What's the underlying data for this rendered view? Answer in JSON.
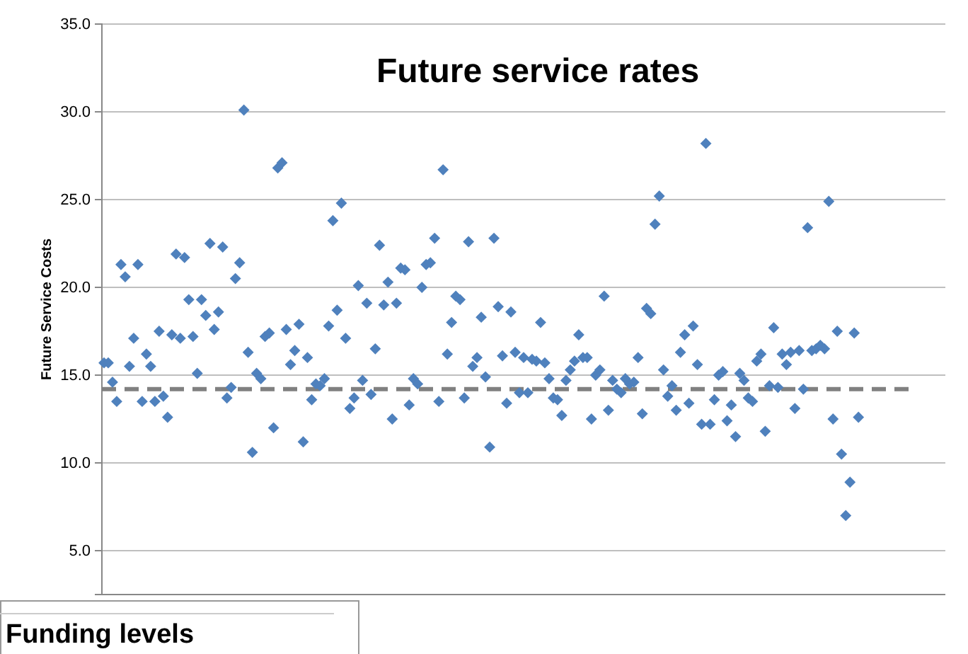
{
  "chart_data": [
    {
      "type": "scatter",
      "title": "Future service rates",
      "ylabel": "Future Service Costs",
      "color": "#4f81bd",
      "marker": "diamond",
      "grid": "y",
      "tick_labels": "y",
      "ylim": [
        2.5,
        35
      ],
      "yticks": [
        {
          "value": 5,
          "label": "5.0"
        },
        {
          "value": 10,
          "label": "10.0"
        },
        {
          "value": 15,
          "label": "15.0"
        },
        {
          "value": 20,
          "label": "20.0"
        },
        {
          "value": 25,
          "label": "25.0"
        },
        {
          "value": 30,
          "label": "30.0"
        },
        {
          "value": 35,
          "label": "35.0"
        }
      ],
      "ref_lines": [
        {
          "axis": "y",
          "value": 14.2,
          "color": "#808080",
          "line_style": "dashed"
        }
      ],
      "values": [
        15.7,
        15.7,
        14.6,
        13.5,
        21.3,
        20.6,
        15.5,
        17.1,
        21.3,
        13.5,
        16.2,
        15.5,
        13.5,
        17.5,
        13.8,
        12.6,
        17.3,
        21.9,
        17.1,
        21.7,
        19.3,
        17.2,
        15.1,
        19.3,
        18.4,
        22.5,
        17.6,
        18.6,
        22.3,
        13.7,
        14.3,
        20.5,
        21.4,
        30.1,
        16.3,
        10.6,
        15.1,
        14.8,
        17.2,
        17.4,
        12.0,
        26.8,
        27.1,
        17.6,
        15.6,
        16.4,
        17.9,
        11.2,
        16.0,
        13.6,
        14.5,
        14.4,
        14.8,
        17.8,
        23.8,
        18.7,
        24.8,
        17.1,
        13.1,
        13.7,
        20.1,
        14.7,
        19.1,
        13.9,
        16.5,
        22.4,
        19.0,
        20.3,
        12.5,
        19.1,
        21.1,
        21.0,
        13.3,
        14.8,
        14.5,
        20.0,
        21.3,
        21.4,
        22.8,
        13.5,
        26.7,
        16.2,
        18.0,
        19.5,
        19.3,
        13.7,
        22.6,
        15.5,
        16.0,
        18.3,
        14.9,
        10.9,
        22.8,
        18.9,
        16.1,
        13.4,
        18.6,
        16.3,
        14.0,
        16.0,
        14.0,
        15.9,
        15.8,
        18.0,
        15.7,
        14.8,
        13.7,
        13.6,
        12.7,
        14.7,
        15.3,
        15.8,
        17.3,
        16.0,
        16.0,
        12.5,
        15.0,
        15.3,
        19.5,
        13.0,
        14.7,
        14.2,
        14.0,
        14.8,
        14.5,
        14.6,
        16.0,
        12.8,
        18.8,
        18.5,
        23.6,
        25.2,
        15.3,
        13.8,
        14.4,
        13.0,
        16.3,
        17.3,
        13.4,
        17.8,
        15.6,
        12.2,
        28.2,
        12.2,
        13.6,
        15.0,
        15.2,
        12.4,
        13.3,
        11.5,
        15.1,
        14.7,
        13.7,
        13.5,
        15.8,
        16.2,
        11.8,
        14.4,
        17.7,
        14.3,
        16.2,
        15.6,
        16.3,
        13.1,
        16.4,
        14.2,
        23.4,
        16.4,
        16.5,
        16.7,
        16.5,
        24.9,
        12.5,
        17.5,
        10.5,
        7.0,
        8.9,
        17.4,
        12.6,
        null,
        null,
        null,
        null,
        null,
        null,
        null,
        null,
        null,
        null,
        null,
        null,
        null,
        null,
        null,
        null,
        null,
        null,
        null,
        null
      ],
      "categories": [
        null,
        null,
        null,
        null,
        null,
        null,
        null,
        null,
        null,
        null,
        null,
        null,
        null,
        null,
        null,
        null,
        null,
        null,
        null,
        null,
        null,
        null,
        null,
        null,
        null,
        null,
        null,
        null,
        null,
        null,
        null,
        null,
        null,
        null,
        null,
        null,
        null,
        null,
        null,
        null,
        null,
        null,
        null,
        null,
        null,
        null,
        null,
        null,
        null,
        null,
        null,
        null,
        null,
        null,
        null,
        null,
        null,
        null,
        null,
        null,
        null,
        null,
        null,
        null,
        null,
        null,
        null,
        null,
        null,
        null,
        null,
        null,
        null,
        null,
        null,
        null,
        null,
        null,
        null,
        null,
        null,
        null,
        null,
        null,
        null,
        null,
        null,
        null,
        null,
        null,
        null,
        null,
        null,
        null,
        null,
        null,
        null,
        null,
        null,
        null,
        null,
        null,
        null,
        null,
        null,
        null,
        null,
        null,
        null,
        null,
        null,
        null,
        null,
        null,
        null,
        null,
        null,
        null,
        null,
        null,
        null,
        null,
        null,
        null,
        null,
        null,
        null,
        null,
        null,
        null,
        null,
        null,
        null,
        null,
        null,
        null,
        null,
        null,
        null,
        null,
        null,
        null,
        null,
        null,
        null,
        null,
        null,
        null,
        null,
        null,
        null,
        null,
        null,
        null,
        null,
        null,
        null,
        null,
        null,
        null,
        null,
        null,
        null,
        null,
        null,
        null,
        null,
        null,
        null,
        null,
        null,
        null,
        null,
        null,
        null,
        null,
        null,
        null,
        null,
        null,
        null,
        null,
        null,
        null,
        null,
        null,
        null,
        null,
        null,
        null,
        null,
        null,
        null,
        null,
        null,
        null,
        null,
        null,
        null
      ]
    },
    {
      "type": "other",
      "title": "Funding levels"
    }
  ]
}
